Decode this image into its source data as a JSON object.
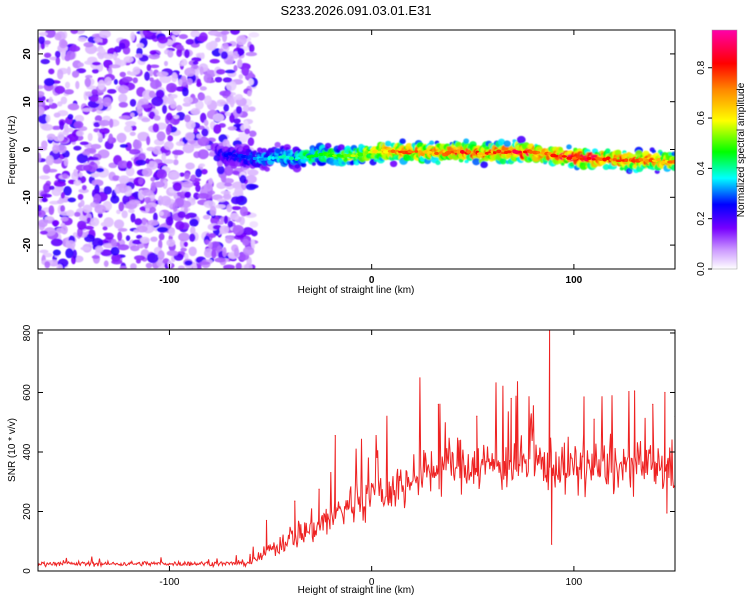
{
  "title": "S233.2026.091.03.01.E31",
  "spectrogram": {
    "type": "heatmap",
    "xlabel": "Height of straight line (km)",
    "ylabel": "Frequency (Hz)",
    "xlim": [
      -165,
      150
    ],
    "ylim": [
      -25,
      25
    ],
    "xticks": [
      -100,
      0,
      100
    ],
    "xtick_labels": [
      "-100",
      "0",
      "100"
    ],
    "yticks": [
      -20,
      -10,
      0,
      10,
      20
    ],
    "ytick_labels": [
      "-20",
      "-10",
      "0",
      "10",
      "20"
    ],
    "noise_region_x": [
      -165,
      -60
    ],
    "signal_track": {
      "x": [
        -75,
        -65,
        -55,
        -45,
        -35,
        -25,
        -15,
        -5,
        5,
        15,
        25,
        35,
        45,
        55,
        65,
        75,
        85,
        95,
        105,
        115,
        125,
        135,
        145
      ],
      "freq": [
        -1,
        -1.5,
        -2,
        -1.5,
        -2,
        -1,
        -1.5,
        -1,
        -0.3,
        -0.5,
        -0.5,
        -0.8,
        -0.3,
        -1,
        -0.5,
        -0.5,
        -0.8,
        -1.5,
        -2,
        -2,
        -2.3,
        -2.2,
        -2.5
      ],
      "peak": [
        0.25,
        0.3,
        0.35,
        0.4,
        0.45,
        0.5,
        0.55,
        0.6,
        0.7,
        0.8,
        0.75,
        0.8,
        0.85,
        0.8,
        0.85,
        0.9,
        0.8,
        0.85,
        0.9,
        0.85,
        0.8,
        0.8,
        0.75
      ]
    }
  },
  "colorbar": {
    "label": "Normalized spectral amplitude",
    "range": [
      0,
      0.95
    ],
    "ticks": [
      0.0,
      0.2,
      0.4,
      0.6,
      0.8
    ],
    "tick_labels": [
      "0.0",
      "0.2",
      "0.4",
      "0.6",
      "0.8"
    ]
  },
  "chart_data": {
    "type": "line",
    "title": "S233.2026.091.03.01.E31",
    "xlabel": "Height of straight line (km)",
    "ylabel": "SNR (10 * v/v)",
    "xlim": [
      -165,
      150
    ],
    "ylim": [
      0,
      810
    ],
    "xticks": [
      -100,
      0,
      100
    ],
    "xtick_labels": [
      "-100",
      "0",
      "100"
    ],
    "yticks": [
      0,
      200,
      400,
      600,
      800
    ],
    "ytick_labels": [
      "0",
      "200",
      "400",
      "600",
      "800"
    ],
    "color": "#ee2222",
    "series": [
      {
        "name": "SNR",
        "x": [
          -165,
          -150,
          -130,
          -110,
          -90,
          -70,
          -60,
          -50,
          -40,
          -30,
          -20,
          -10,
          0,
          10,
          20,
          30,
          40,
          50,
          60,
          70,
          80,
          90,
          100,
          110,
          120,
          130,
          140,
          150
        ],
        "mean": [
          25,
          25,
          24,
          25,
          25,
          25,
          28,
          70,
          115,
          140,
          180,
          230,
          255,
          275,
          300,
          340,
          360,
          360,
          355,
          360,
          360,
          360,
          345,
          350,
          345,
          350,
          355,
          340
        ],
        "noise": [
          7,
          7,
          7,
          7,
          7,
          7,
          10,
          28,
          40,
          50,
          60,
          70,
          70,
          75,
          75,
          80,
          80,
          80,
          80,
          80,
          80,
          80,
          80,
          80,
          80,
          80,
          80,
          80
        ]
      }
    ],
    "spikes": [
      {
        "x": -60,
        "y": 45
      },
      {
        "x": -52,
        "y": 170
      },
      {
        "x": -38,
        "y": 235
      },
      {
        "x": -26,
        "y": 275
      },
      {
        "x": -18,
        "y": 455
      },
      {
        "x": 33,
        "y": 560
      },
      {
        "x": 52,
        "y": 520
      },
      {
        "x": 69,
        "y": 580
      },
      {
        "x": 80,
        "y": 555
      },
      {
        "x": 88,
        "y": 815
      },
      {
        "x": 89,
        "y": 90
      },
      {
        "x": 105,
        "y": 585
      },
      {
        "x": 110,
        "y": 510
      },
      {
        "x": 130,
        "y": 605
      },
      {
        "x": 139,
        "y": 560
      },
      {
        "x": 145,
        "y": 600
      },
      {
        "x": 146,
        "y": 195
      },
      {
        "x": 150,
        "y": 520
      }
    ]
  }
}
